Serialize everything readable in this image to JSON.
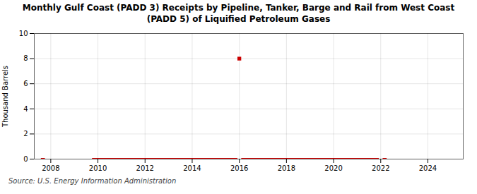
{
  "chart_data": {
    "type": "line",
    "title": "Monthly Gulf Coast (PADD 3) Receipts by Pipeline, Tanker, Barge and Rail from West Coast\n(PADD 5) of Liquified Petroleum Gases",
    "ylabel": "Thousand Barrels",
    "annotations": [
      "Source: U.S. Energy Information Administration"
    ],
    "xlim": [
      2007.3,
      2025.5
    ],
    "ylim": [
      0,
      10
    ],
    "xticks": [
      2008,
      2010,
      2012,
      2014,
      2016,
      2018,
      2020,
      2022,
      2024
    ],
    "yticks": [
      0,
      2,
      4,
      6,
      8,
      10
    ],
    "grid": true,
    "series": [
      {
        "type": "line",
        "color": "#cc0000",
        "line_style": "solid",
        "x": [
          2007.58,
          2007.75
        ],
        "values": [
          0,
          0
        ]
      },
      {
        "type": "line",
        "color": "#cc0000",
        "line_style": "solid",
        "x": [
          2009.75,
          2015.92
        ],
        "values": [
          0,
          0
        ]
      },
      {
        "type": "line",
        "color": "#cc0000",
        "line_style": "solid",
        "x": [
          2016.08,
          2021.92
        ],
        "values": [
          0,
          0
        ]
      },
      {
        "type": "line",
        "color": "#cc0000",
        "line_style": "solid",
        "x": [
          2022.08,
          2022.25
        ],
        "values": [
          0,
          0
        ]
      },
      {
        "type": "scatter",
        "color": "#cc0000",
        "marker": "square",
        "x": [
          2016.0
        ],
        "values": [
          8.0
        ]
      }
    ]
  }
}
